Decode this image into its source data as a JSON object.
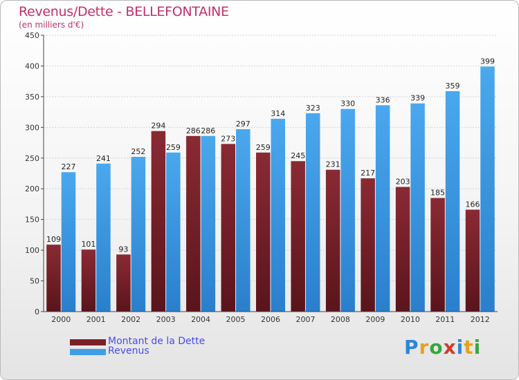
{
  "chart_data": {
    "type": "bar",
    "title": "Revenus/Dette - BELLEFONTAINE",
    "subtitle": "(en milliers d'€)",
    "xlabel": "",
    "ylabel": "",
    "ylim": [
      0,
      450
    ],
    "yticks": [
      0,
      50,
      100,
      150,
      200,
      250,
      300,
      350,
      400,
      450
    ],
    "grid": true,
    "legend_position": "bottom-left",
    "categories": [
      "2000",
      "2001",
      "2002",
      "2003",
      "2004",
      "2005",
      "2006",
      "2007",
      "2008",
      "2009",
      "2010",
      "2011",
      "2012"
    ],
    "series": [
      {
        "name": "Montant de la Dette",
        "color": "#7a1f28",
        "values": [
          109,
          101,
          93,
          294,
          286,
          273,
          259,
          245,
          231,
          217,
          203,
          185,
          166
        ],
        "labels": [
          "109",
          "101",
          "93",
          "294",
          "286",
          "273",
          "259",
          "245",
          "231",
          "217",
          "203",
          "185",
          "166"
        ]
      },
      {
        "name": "Revenus",
        "color": "#3f9ee6",
        "values": [
          227,
          241,
          252,
          259,
          286,
          297,
          314,
          323,
          330,
          336,
          339,
          359,
          399
        ],
        "labels": [
          "227",
          "241",
          "252",
          "259",
          "286",
          "297",
          "314",
          "323",
          "330",
          "336",
          "339",
          "359",
          "399"
        ]
      }
    ]
  },
  "brand": {
    "letters": [
      "P",
      "r",
      "o",
      "x",
      "i",
      "t",
      "i"
    ],
    "colors": [
      "#2c86d8",
      "#e8a21a",
      "#35a83c",
      "#d43a2a",
      "#2c86d8",
      "#e8a21a",
      "#35a83c"
    ]
  }
}
